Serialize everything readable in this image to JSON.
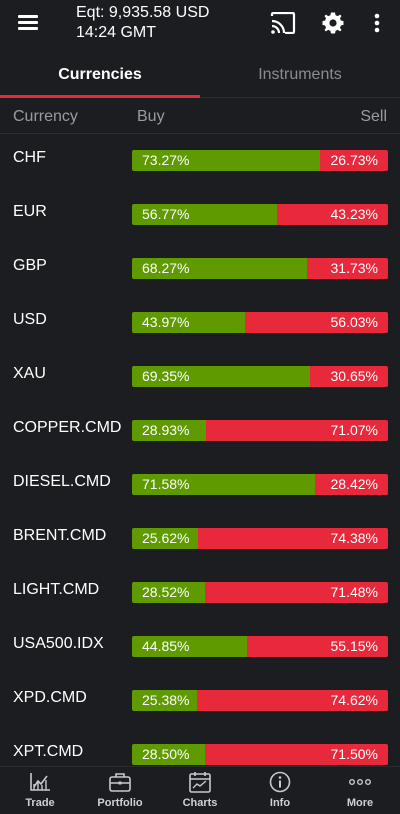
{
  "header": {
    "equity": "Eqt: 9,935.58 USD",
    "time": "14:24 GMT",
    "icons": [
      "menu-icon",
      "cast-icon",
      "gear-icon",
      "more-vertical-icon"
    ]
  },
  "tabs": [
    {
      "label": "Currencies",
      "active": true
    },
    {
      "label": "Instruments",
      "active": false
    }
  ],
  "columns": {
    "currency": "Currency",
    "buy": "Buy",
    "sell": "Sell"
  },
  "rows": [
    {
      "name": "CHF",
      "buy": 73.27,
      "buy_label": "73.27%",
      "sell_label": "26.73%"
    },
    {
      "name": "EUR",
      "buy": 56.77,
      "buy_label": "56.77%",
      "sell_label": "43.23%"
    },
    {
      "name": "GBP",
      "buy": 68.27,
      "buy_label": "68.27%",
      "sell_label": "31.73%"
    },
    {
      "name": "USD",
      "buy": 43.97,
      "buy_label": "43.97%",
      "sell_label": "56.03%"
    },
    {
      "name": "XAU",
      "buy": 69.35,
      "buy_label": "69.35%",
      "sell_label": "30.65%"
    },
    {
      "name": "COPPER.CMD",
      "buy": 28.93,
      "buy_label": "28.93%",
      "sell_label": "71.07%"
    },
    {
      "name": "DIESEL.CMD",
      "buy": 71.58,
      "buy_label": "71.58%",
      "sell_label": "28.42%"
    },
    {
      "name": "BRENT.CMD",
      "buy": 25.62,
      "buy_label": "25.62%",
      "sell_label": "74.38%"
    },
    {
      "name": "LIGHT.CMD",
      "buy": 28.52,
      "buy_label": "28.52%",
      "sell_label": "71.48%"
    },
    {
      "name": "USA500.IDX",
      "buy": 44.85,
      "buy_label": "44.85%",
      "sell_label": "55.15%"
    },
    {
      "name": "XPD.CMD",
      "buy": 25.38,
      "buy_label": "25.38%",
      "sell_label": "74.62%"
    },
    {
      "name": "XPT.CMD",
      "buy": 28.5,
      "buy_label": "28.50%",
      "sell_label": "71.50%"
    }
  ],
  "colors": {
    "buy": "#5e9a00",
    "sell": "#e8293b",
    "accent": "#e8293b",
    "background": "#1c1d21"
  },
  "bottom_nav": [
    {
      "label": "Trade",
      "icon": "trade-chart-icon"
    },
    {
      "label": "Portfolio",
      "icon": "briefcase-icon"
    },
    {
      "label": "Charts",
      "icon": "calendar-chart-icon"
    },
    {
      "label": "Info",
      "icon": "info-icon"
    },
    {
      "label": "More",
      "icon": "more-dots-icon"
    }
  ]
}
